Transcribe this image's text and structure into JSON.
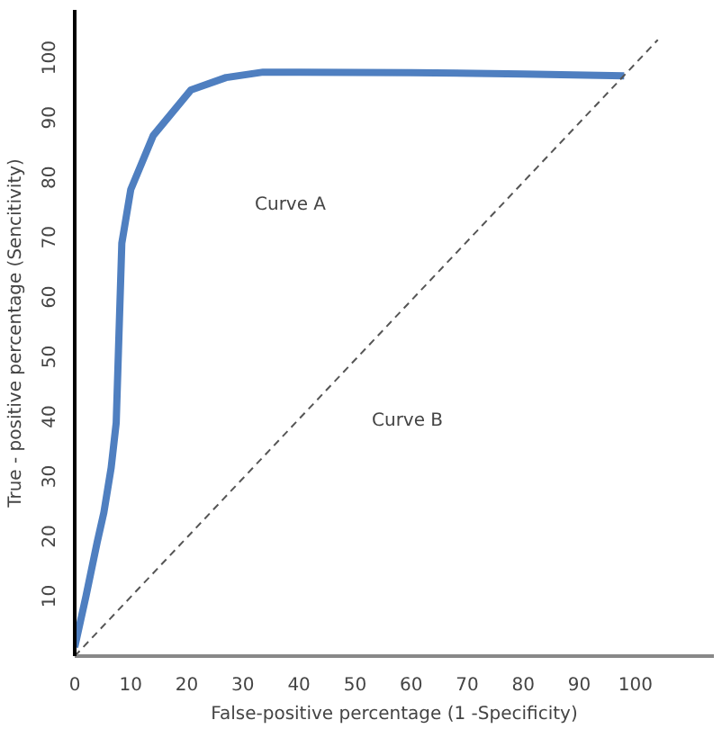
{
  "chart_data": {
    "type": "line",
    "xlabel": "False-positive percentage (1 -Specificity)",
    "ylabel": "True - positive percentage (Sencitivity)",
    "xlim": [
      0,
      114
    ],
    "ylim": [
      0,
      108
    ],
    "xticks": [
      0,
      10,
      20,
      30,
      40,
      50,
      60,
      70,
      80,
      90,
      100
    ],
    "yticks": [
      10,
      20,
      30,
      40,
      50,
      60,
      70,
      80,
      90,
      100
    ],
    "grid": false,
    "marker": "none",
    "series": [
      {
        "color": "#4f7fc0",
        "line_style": "solid",
        "x": [
          0,
          2,
          4,
          5.2,
          6.5,
          7.4,
          7.8,
          8.4,
          10,
          14,
          20.7,
          27,
          33.6,
          40,
          60,
          80,
          98
        ],
        "values": [
          1.5,
          10,
          19,
          24,
          31.5,
          39,
          51,
          69,
          78,
          87,
          94.6,
          96.7,
          97.6,
          97.6,
          97.5,
          97.3,
          97
        ]
      },
      {
        "color": "#555555",
        "line_style": "dashed",
        "x": [
          0,
          104
        ],
        "values": [
          0,
          103
        ]
      }
    ],
    "annotations": [
      "Curve A",
      "Curve B"
    ]
  }
}
